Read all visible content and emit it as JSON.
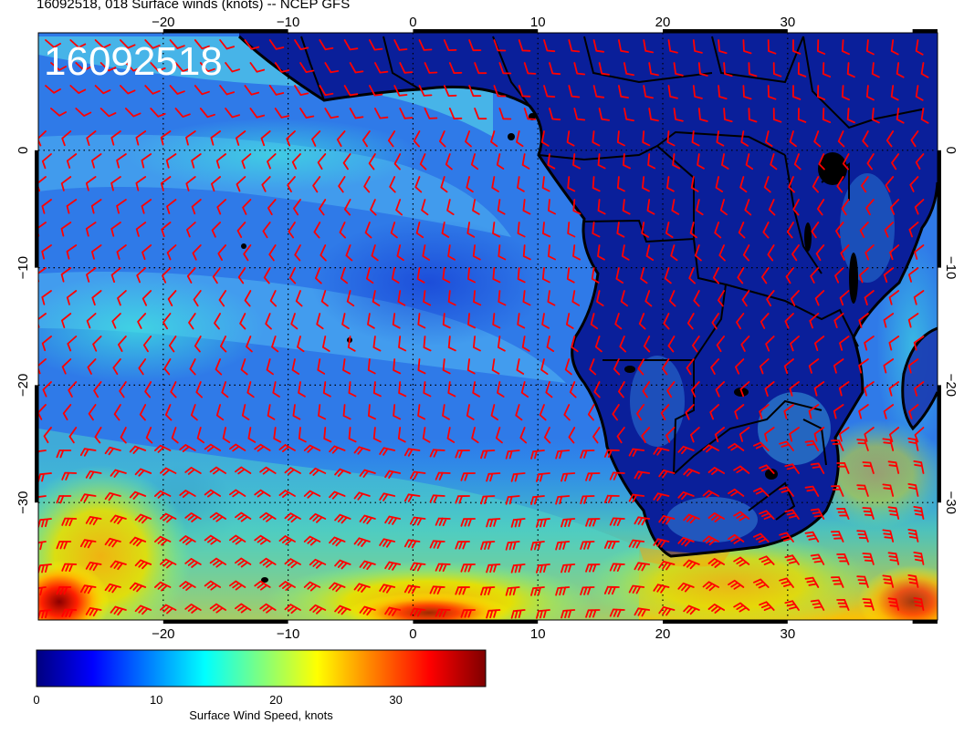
{
  "title": "16092518, 018 Surface winds (knots) -- NCEP GFS",
  "stamp": "16092518",
  "map": {
    "lon_range": [
      -30,
      42
    ],
    "lat_range": [
      -40,
      10
    ],
    "lon_ticks": [
      -20,
      -10,
      0,
      10,
      20,
      30
    ],
    "lat_ticks": [
      0,
      -10,
      -20,
      -30
    ],
    "lon_tick_labels": [
      "−20",
      "−10",
      "0",
      "10",
      "20",
      "30"
    ],
    "lat_tick_labels": [
      "0",
      "−10",
      "−20",
      "−30"
    ]
  },
  "colorbar": {
    "label": "Surface Wind Speed, knots",
    "range": [
      0,
      37.5
    ],
    "ticks": [
      "0",
      "10",
      "20",
      "30"
    ],
    "colors": [
      "#00007f",
      "#0000ff",
      "#007fff",
      "#00ffff",
      "#7fff7f",
      "#ffff00",
      "#ff7f00",
      "#ff0000",
      "#7f0000"
    ]
  },
  "colors": {
    "barb": "#ff0000",
    "coast": "#000000",
    "grid": "#000000"
  }
}
